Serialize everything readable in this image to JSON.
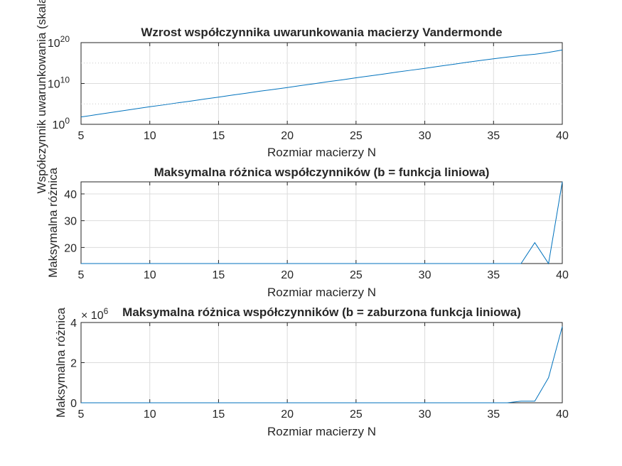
{
  "series_color": "#0072BD",
  "chart_data": [
    {
      "type": "line",
      "title": "Wzrost współczynnika uwarunkowania macierzy Vandermonde",
      "xlabel": "Rozmiar macierzy N",
      "ylabel": "Współczynnik uwarunkowania (skala log)",
      "yscale": "log",
      "xlim": [
        5,
        40
      ],
      "ylim_exponents": [
        0,
        20
      ],
      "xticks": [
        "5",
        "10",
        "15",
        "20",
        "25",
        "30",
        "35",
        "40"
      ],
      "yticks": [
        {
          "base": "10",
          "exp": "0"
        },
        {
          "base": "10",
          "exp": "10"
        },
        {
          "base": "10",
          "exp": "20"
        }
      ],
      "grid": true,
      "x": [
        5,
        6,
        7,
        8,
        9,
        10,
        11,
        12,
        13,
        14,
        15,
        16,
        17,
        18,
        19,
        20,
        21,
        22,
        23,
        24,
        25,
        26,
        27,
        28,
        29,
        30,
        31,
        32,
        33,
        34,
        35,
        36,
        37,
        38,
        39,
        40
      ],
      "log10_y": [
        1.8,
        2.3,
        2.8,
        3.3,
        3.8,
        4.3,
        4.75,
        5.25,
        5.7,
        6.2,
        6.65,
        7.15,
        7.6,
        8.1,
        8.55,
        9.0,
        9.5,
        9.95,
        10.45,
        10.9,
        11.4,
        11.85,
        12.3,
        12.8,
        13.25,
        13.7,
        14.2,
        14.65,
        15.15,
        15.6,
        16.05,
        16.45,
        16.85,
        17.15,
        17.6,
        18.2
      ]
    },
    {
      "type": "line",
      "title": "Maksymalna różnica współczynników (b = funkcja liniowa)",
      "xlabel": "Rozmiar macierzy N",
      "ylabel": "Maksymalna różnica",
      "xlim": [
        5,
        40
      ],
      "ylim": [
        14,
        44.5
      ],
      "xticks": [
        "5",
        "10",
        "15",
        "20",
        "25",
        "30",
        "35",
        "40"
      ],
      "yticks": [
        "20",
        "30",
        "40"
      ],
      "grid": true,
      "x": [
        5,
        6,
        7,
        8,
        9,
        10,
        11,
        12,
        13,
        14,
        15,
        16,
        17,
        18,
        19,
        20,
        21,
        22,
        23,
        24,
        25,
        26,
        27,
        28,
        29,
        30,
        31,
        32,
        33,
        34,
        35,
        36,
        37,
        38,
        39,
        40
      ],
      "y": [
        14,
        14,
        14,
        14,
        14,
        14,
        14,
        14,
        14,
        14,
        14,
        14,
        14,
        14,
        14,
        14,
        14,
        14,
        14,
        14,
        14,
        14,
        14,
        14,
        14,
        14,
        14,
        14,
        14,
        14,
        14,
        14,
        14,
        21.8,
        14,
        44.5
      ]
    },
    {
      "type": "line",
      "title": "Maksymalna różnica współczynników (b = zaburzona funkcja liniowa)",
      "xlabel": "Rozmiar macierzy N",
      "ylabel": "Maksymalna różnica",
      "exponent_label": {
        "base": "× 10",
        "exp": "6"
      },
      "xlim": [
        5,
        40
      ],
      "ylim": [
        0,
        4
      ],
      "xticks": [
        "5",
        "10",
        "15",
        "20",
        "25",
        "30",
        "35",
        "40"
      ],
      "yticks": [
        "0",
        "2",
        "4"
      ],
      "grid": true,
      "x": [
        5,
        6,
        7,
        8,
        9,
        10,
        11,
        12,
        13,
        14,
        15,
        16,
        17,
        18,
        19,
        20,
        21,
        22,
        23,
        24,
        25,
        26,
        27,
        28,
        29,
        30,
        31,
        32,
        33,
        34,
        35,
        36,
        37,
        38,
        39,
        40
      ],
      "y": [
        0,
        0,
        0,
        0,
        0,
        0,
        0,
        0,
        0,
        0,
        0,
        0,
        0,
        0,
        0,
        0,
        0,
        0,
        0,
        0,
        0,
        0,
        0,
        0,
        0,
        0,
        0,
        0,
        0,
        0,
        0,
        0,
        0.08,
        0.08,
        1.25,
        3.8
      ]
    }
  ]
}
